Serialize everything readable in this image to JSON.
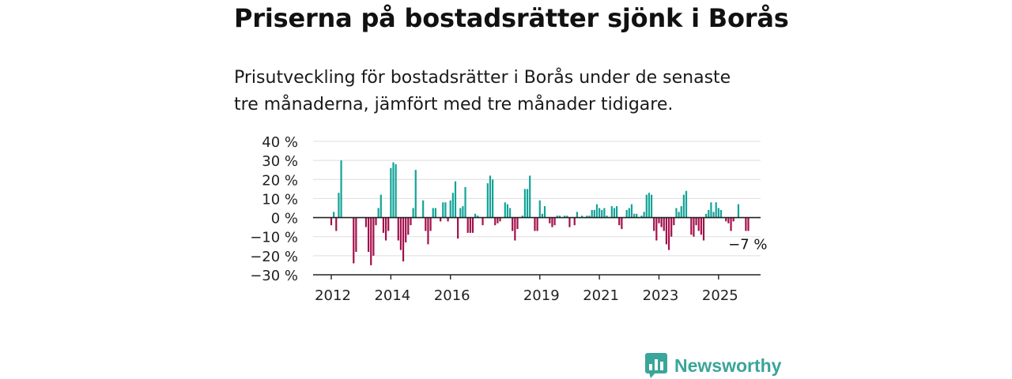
{
  "title": "Priserna på bostadsrätter sjönk i Borås",
  "subtitle_line1": "Prisutveckling för bostadsrätter i Borås under de senaste",
  "subtitle_line2": "tre månaderna, jämfört med tre månader tidigare.",
  "brand": "Newsworthy",
  "colors": {
    "positive": "#13a398",
    "negative": "#a3104b",
    "grid": "#dddddd",
    "axis": "#222222"
  },
  "chart_data": {
    "type": "bar",
    "title": "",
    "xlabel": "",
    "ylabel": "",
    "ylim": [
      -30,
      40
    ],
    "yticks": [
      "40 %",
      "30 %",
      "20 %",
      "10 %",
      "0 %",
      "−10 %",
      "−20 %",
      "−30 %"
    ],
    "ytick_values": [
      40,
      30,
      20,
      10,
      0,
      -10,
      -20,
      -30
    ],
    "xtick_labels": [
      {
        "label": "2012",
        "index": 0
      },
      {
        "label": "2014",
        "index": 24
      },
      {
        "label": "2016",
        "index": 48
      },
      {
        "label": "2019",
        "index": 84
      },
      {
        "label": "2021",
        "index": 108
      },
      {
        "label": "2023",
        "index": 132
      },
      {
        "label": "2025",
        "index": 156
      }
    ],
    "first_period": "2012-01",
    "last_value_label": "−7 %",
    "values": [
      -4,
      3,
      -7,
      13,
      30,
      0,
      0,
      0,
      0,
      -24,
      -18,
      0,
      0,
      0,
      -5,
      -18,
      -25,
      -20,
      -4,
      5,
      12,
      -8,
      -12,
      -7,
      26,
      29,
      28,
      -12,
      -17,
      -23,
      -13,
      -9,
      -4,
      5,
      25,
      0,
      0,
      9,
      -7,
      -14,
      -7,
      5,
      5,
      0,
      -2,
      8,
      8,
      -2,
      9,
      13,
      19,
      -11,
      5,
      6,
      16,
      -8,
      -8,
      -8,
      2,
      1,
      0,
      -4,
      0,
      18,
      22,
      20,
      -4,
      -3,
      -2,
      0,
      8,
      7,
      5,
      -7,
      -12,
      -6,
      0,
      1,
      15,
      15,
      22,
      0,
      -7,
      -7,
      9,
      2,
      6,
      0,
      -3,
      -5,
      -4,
      1,
      1,
      0,
      1,
      1,
      -5,
      0,
      -4,
      3,
      0,
      1,
      0,
      1,
      1,
      4,
      4,
      7,
      5,
      4,
      5,
      1,
      0,
      6,
      5,
      6,
      -4,
      -6,
      0,
      4,
      5,
      7,
      2,
      2,
      0,
      1,
      3,
      12,
      13,
      12,
      -7,
      -12,
      -3,
      -5,
      -7,
      -14,
      -17,
      -10,
      -4,
      5,
      3,
      6,
      12,
      14,
      0,
      -9,
      -10,
      -4,
      -7,
      -9,
      -12,
      2,
      4,
      8,
      3,
      8,
      5,
      4,
      0,
      -2,
      -3,
      -7,
      -2,
      0,
      7,
      0,
      0,
      -7,
      -7
    ]
  }
}
